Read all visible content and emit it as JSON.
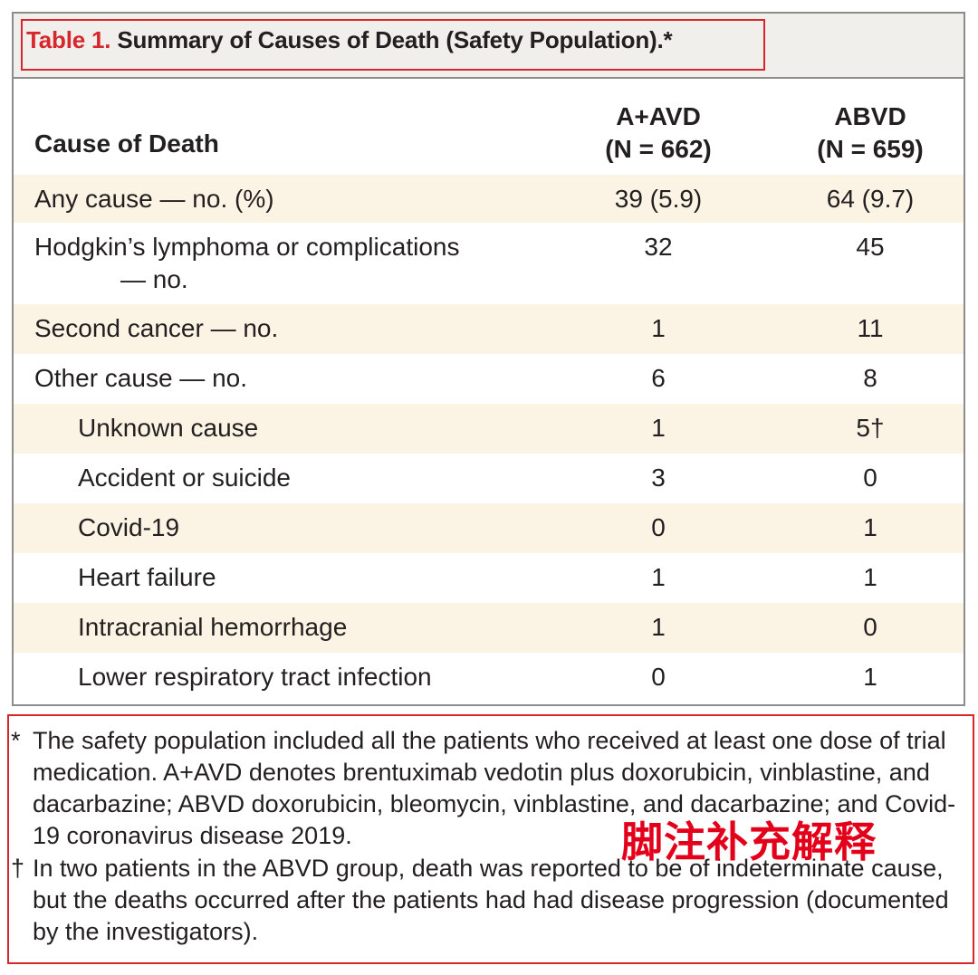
{
  "title": {
    "label": "Table 1.",
    "text": "Summary of Causes of Death (Safety Population).*"
  },
  "header": {
    "cause": "Cause of Death",
    "col1_line1": "A+AVD",
    "col1_line2": "(N = 662)",
    "col2_line1": "ABVD",
    "col2_line2": "(N = 659)"
  },
  "rows": [
    {
      "cause": "Any cause — no. (%)",
      "a": "39 (5.9)",
      "b": "64 (9.7)"
    },
    {
      "cause": "Hodgkin’s lymphoma or complications",
      "cause2": "— no.",
      "a": "32",
      "b": "45"
    },
    {
      "cause": "Second cancer — no.",
      "a": "1",
      "b": "11"
    },
    {
      "cause": "Other cause — no.",
      "a": "6",
      "b": "8"
    },
    {
      "cause": "Unknown cause",
      "a": "1",
      "b": "5†"
    },
    {
      "cause": "Accident or suicide",
      "a": "3",
      "b": "0"
    },
    {
      "cause": "Covid-19",
      "a": "0",
      "b": "1"
    },
    {
      "cause": "Heart failure",
      "a": "1",
      "b": "1"
    },
    {
      "cause": "Intracranial hemorrhage",
      "a": "1",
      "b": "0"
    },
    {
      "cause": "Lower respiratory tract infection",
      "a": "0",
      "b": "1"
    }
  ],
  "footnotes": [
    {
      "mark": "*",
      "text": "The safety population included all the patients who received at least one dose of trial medication. A+AVD denotes brentuximab vedotin plus doxorubicin, vinblastine, and dacarbazine; ABVD doxorubicin, bleomycin, vinblastine, and dacarbazine; and Covid-19 coronavirus disease 2019."
    },
    {
      "mark": "†",
      "text": "In two patients in the ABVD group, death was reported to be of indeterminate cause, but the deaths occurred after the patients had had disease progression (documented by the investigators)."
    }
  ],
  "annotation": "脚注补充解释",
  "colors": {
    "accent_red": "#d7262c",
    "row_shade": "#fbf3e4",
    "title_band": "#f1efeb",
    "frame": "#8c8c8c"
  }
}
